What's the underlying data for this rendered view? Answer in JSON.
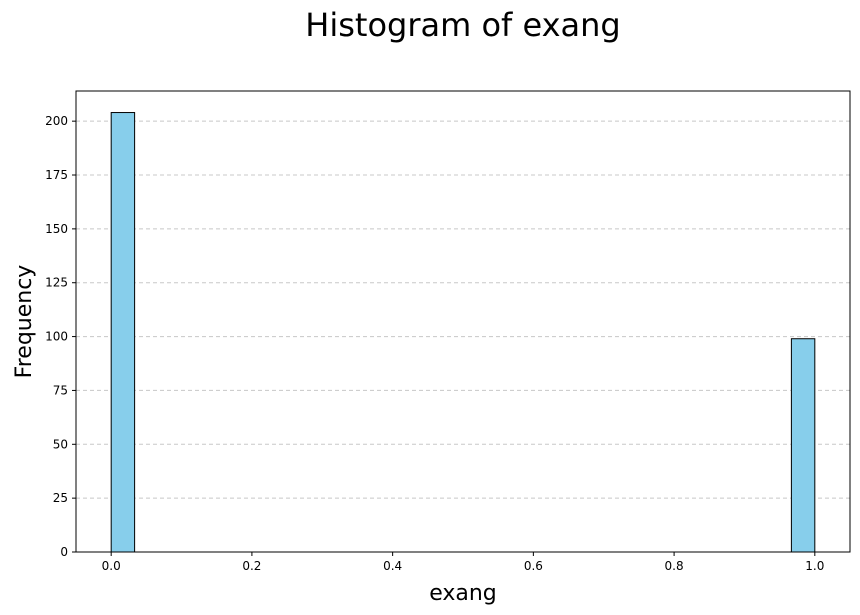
{
  "chart_data": {
    "type": "bar",
    "title": "Histogram of exang",
    "xlabel": "exang",
    "ylabel": "Frequency",
    "bins": [
      {
        "x_start": 0.0,
        "x_end": 0.0333,
        "count": 204
      },
      {
        "x_start": 0.9667,
        "x_end": 1.0,
        "count": 99
      }
    ],
    "xlim": [
      -0.05,
      1.05
    ],
    "ylim": [
      0,
      214
    ],
    "x_ticks": [
      0.0,
      0.2,
      0.4,
      0.6,
      0.8,
      1.0
    ],
    "x_tick_labels": [
      "0.0",
      "0.2",
      "0.4",
      "0.6",
      "0.8",
      "1.0"
    ],
    "y_ticks": [
      0,
      25,
      50,
      75,
      100,
      125,
      150,
      175,
      200
    ],
    "y_tick_labels": [
      "0",
      "25",
      "50",
      "75",
      "100",
      "125",
      "150",
      "175",
      "200"
    ],
    "grid": "y-dashed",
    "colors": {
      "bar_fill": "#87ceeb",
      "bar_edge": "#000000",
      "grid": "#c8c8c8"
    }
  }
}
